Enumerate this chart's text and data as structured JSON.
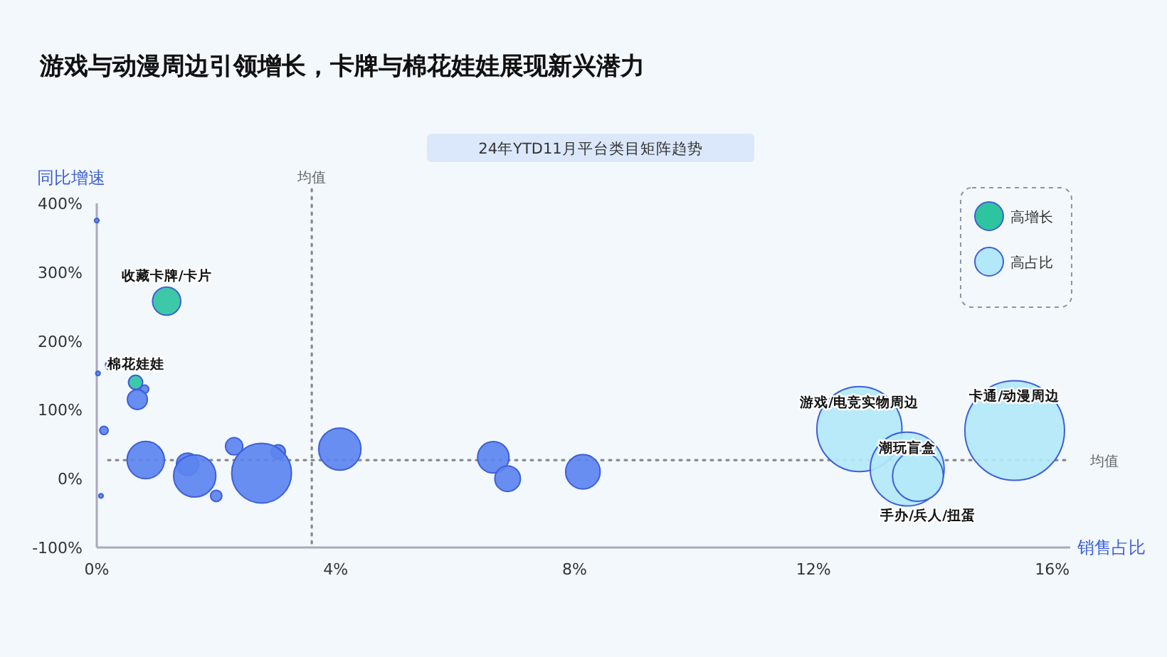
{
  "chart_data": {
    "type": "bubble",
    "title": "游戏与动漫周边引领增长，卡牌与棉花娃娃展现新兴潜力",
    "subtitle": "24年YTD11月平台类目矩阵趋势",
    "xlabel": "销售占比",
    "ylabel": "同比增速",
    "xlim": [
      0,
      16.3
    ],
    "ylim": [
      -100,
      400
    ],
    "xticks": [
      {
        "value": 0,
        "label": "0%"
      },
      {
        "value": 4,
        "label": "4%"
      },
      {
        "value": 8,
        "label": "8%"
      },
      {
        "value": 12,
        "label": "12%"
      },
      {
        "value": 16,
        "label": "16%"
      }
    ],
    "yticks": [
      {
        "value": -100,
        "label": "-100%"
      },
      {
        "value": 0,
        "label": "0%"
      },
      {
        "value": 100,
        "label": "100%"
      },
      {
        "value": 200,
        "label": "200%"
      },
      {
        "value": 300,
        "label": "300%"
      },
      {
        "value": 400,
        "label": "400%"
      }
    ],
    "legend": "top right",
    "grid": false,
    "ref_lines": [
      {
        "axis": "x",
        "value": 3.6,
        "label": "均值",
        "line_style": "dotted"
      },
      {
        "axis": "y",
        "value": 27,
        "label": "均值",
        "line_style": "dotted"
      }
    ],
    "series": [
      {
        "color": "#5b84ef",
        "x": [
          0,
          0.23,
          0.02,
          0.8,
          0.68,
          0.12,
          0.82,
          2.3,
          1.52,
          1.64,
          2.0,
          0.07,
          3.04,
          2.76,
          4.07,
          6.64,
          6.88,
          8.14
        ],
        "values": [
          375,
          165,
          153,
          130,
          115,
          70,
          27,
          47,
          21,
          4,
          -25,
          -25,
          39,
          8,
          43,
          31,
          0,
          10
        ],
        "sizes": [
          0.002,
          0.01,
          0.002,
          0.007,
          0.04,
          0.007,
          0.14,
          0.03,
          0.05,
          0.18,
          0.013,
          0.002,
          0.02,
          0.36,
          0.18,
          0.1,
          0.066,
          0.12
        ]
      },
      {
        "name": "高增长",
        "color": "#2ec4a0",
        "x": [
          1.17,
          0.65
        ],
        "values": [
          258,
          140
        ],
        "sizes": [
          0.08,
          0.02
        ]
      },
      {
        "name": "高占比",
        "color": "#b3e8f8",
        "x": [
          12.77,
          15.37,
          13.57,
          13.75
        ],
        "values": [
          72,
          70,
          14,
          4
        ],
        "sizes": [
          0.73,
          1,
          0.55,
          0.26
        ]
      }
    ],
    "annotations": [
      {
        "text": "收藏卡牌/卡片",
        "x": 1.17,
        "y": 258
      },
      {
        "text": "棉花娃娃",
        "x": 0.65,
        "y": 140
      },
      {
        "text": "游戏/电竞实物周边",
        "x": 12.77,
        "y": 72
      },
      {
        "text": "卡通/动漫周边",
        "x": 15.37,
        "y": 70
      },
      {
        "text": "潮玩盲盒",
        "x": 13.57,
        "y": 14
      },
      {
        "text": "手办/兵人/扭蛋",
        "x": 13.75,
        "y": 4
      }
    ]
  }
}
